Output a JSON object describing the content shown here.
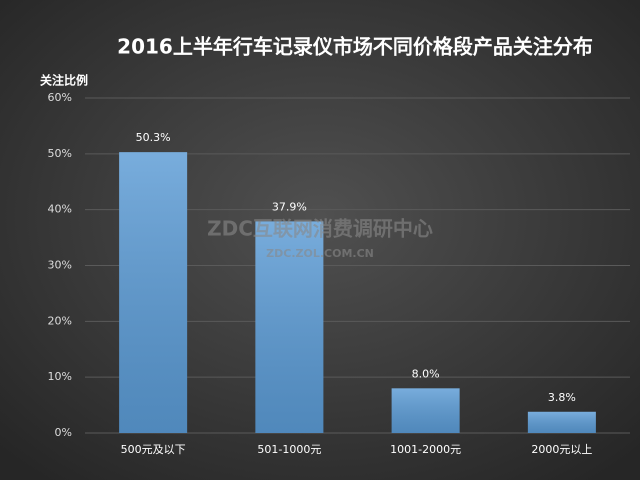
{
  "chart_data": {
    "type": "bar",
    "title": "2016上半年行车记录仪市场不同价格段产品关注分布",
    "y_label": "关注比例",
    "categories": [
      "500元及以下",
      "501-1000元",
      "1001-2000元",
      "2000元以上"
    ],
    "values": [
      50.3,
      37.9,
      8.0,
      3.8
    ],
    "value_labels": [
      "50.3%",
      "37.9%",
      "8.0%",
      "3.8%"
    ],
    "color": "#5b9bd5",
    "ylim": [
      0,
      60
    ],
    "yticks": [
      {
        "value": 0,
        "label": "0%"
      },
      {
        "value": 10,
        "label": "10%"
      },
      {
        "value": 20,
        "label": "20%"
      },
      {
        "value": 30,
        "label": "30%"
      },
      {
        "value": 40,
        "label": "40%"
      },
      {
        "value": 50,
        "label": "50%"
      },
      {
        "value": 60,
        "label": "60%"
      }
    ],
    "grid": true,
    "annotations": [
      "ZDC互联网消费调研中心",
      "ZDC.ZOL.COM.CN"
    ]
  }
}
